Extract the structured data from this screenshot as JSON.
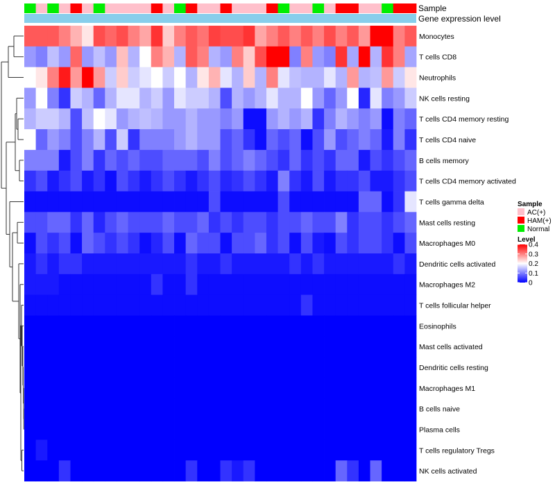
{
  "chart_data": {
    "type": "heatmap",
    "title": "",
    "rows": [
      "Monocytes",
      "T cells CD8",
      "Neutrophils",
      "NK cells resting",
      "T cells CD4 memory resting",
      "T cells CD4 naive",
      "B cells memory",
      "T cells CD4 memory activated",
      "T cells gamma delta",
      "Mast cells resting",
      "Macrophages M0",
      "Dendritic cells activated",
      "Macrophages M2",
      "T cells follicular helper",
      "Eosinophils",
      "Mast cells activated",
      "Dendritic cells resting",
      "Macrophages M1",
      "B cells naive",
      "Plasma cells",
      "T cells regulatory  Tregs",
      "NK cells activated"
    ],
    "samples": [
      "Normal",
      "AC(+)",
      "Normal",
      "AC(+)",
      "HAM(+)",
      "AC(+)",
      "Normal",
      "AC(+)",
      "AC(+)",
      "AC(+)",
      "AC(+)",
      "HAM(+)",
      "AC(+)",
      "Normal",
      "HAM(+)",
      "AC(+)",
      "AC(+)",
      "HAM(+)",
      "AC(+)",
      "AC(+)",
      "AC(+)",
      "HAM(+)",
      "Normal",
      "AC(+)",
      "AC(+)",
      "Normal",
      "AC(+)",
      "HAM(+)",
      "HAM(+)",
      "AC(+)",
      "AC(+)",
      "Normal",
      "HAM(+)",
      "HAM(+)"
    ],
    "values": [
      [
        0.33,
        0.33,
        0.33,
        0.3,
        0.26,
        0.22,
        0.34,
        0.32,
        0.34,
        0.3,
        0.27,
        0.36,
        0.24,
        0.3,
        0.33,
        0.31,
        0.35,
        0.34,
        0.34,
        0.36,
        0.27,
        0.3,
        0.33,
        0.3,
        0.33,
        0.3,
        0.34,
        0.3,
        0.33,
        0.28,
        0.4,
        0.4,
        0.3,
        0.33
      ],
      [
        0.12,
        0.1,
        0.15,
        0.12,
        0.32,
        0.12,
        0.15,
        0.12,
        0.25,
        0.14,
        0.2,
        0.3,
        0.26,
        0.14,
        0.33,
        0.3,
        0.14,
        0.12,
        0.3,
        0.24,
        0.34,
        0.4,
        0.4,
        0.1,
        0.3,
        0.12,
        0.1,
        0.36,
        0.13,
        0.4,
        0.14,
        0.36,
        0.3,
        0.13
      ],
      [
        0.2,
        0.22,
        0.3,
        0.38,
        0.28,
        0.4,
        0.28,
        0.16,
        0.24,
        0.16,
        0.18,
        0.2,
        0.16,
        0.2,
        0.14,
        0.22,
        0.26,
        0.18,
        0.14,
        0.24,
        0.14,
        0.3,
        0.18,
        0.15,
        0.14,
        0.14,
        0.18,
        0.14,
        0.28,
        0.14,
        0.15,
        0.28,
        0.16,
        0.22
      ],
      [
        0.12,
        0.2,
        0.1,
        0.04,
        0.16,
        0.14,
        0.08,
        0.14,
        0.18,
        0.18,
        0.14,
        0.16,
        0.12,
        0.18,
        0.16,
        0.16,
        0.14,
        0.06,
        0.14,
        0.12,
        0.14,
        0.18,
        0.14,
        0.14,
        0.2,
        0.12,
        0.08,
        0.12,
        0.2,
        0.03,
        0.18,
        0.1,
        0.12,
        0.16
      ],
      [
        0.14,
        0.16,
        0.16,
        0.14,
        0.06,
        0.15,
        0.2,
        0.18,
        0.12,
        0.14,
        0.15,
        0.14,
        0.12,
        0.12,
        0.14,
        0.12,
        0.12,
        0.1,
        0.12,
        0.01,
        0.01,
        0.12,
        0.14,
        0.12,
        0.14,
        0.04,
        0.1,
        0.14,
        0.12,
        0.1,
        0.12,
        0.01,
        0.1,
        0.08
      ],
      [
        0.2,
        0.08,
        0.12,
        0.1,
        0.06,
        0.1,
        0.14,
        0.06,
        0.16,
        0.04,
        0.1,
        0.1,
        0.1,
        0.12,
        0.14,
        0.12,
        0.12,
        0.06,
        0.08,
        0.04,
        0.01,
        0.08,
        0.06,
        0.08,
        0.01,
        0.06,
        0.12,
        0.06,
        0.08,
        0.1,
        0.08,
        0.02,
        0.1,
        0.04
      ],
      [
        0.1,
        0.1,
        0.1,
        0.02,
        0.06,
        0.1,
        0.04,
        0.08,
        0.06,
        0.08,
        0.06,
        0.06,
        0.08,
        0.08,
        0.08,
        0.06,
        0.1,
        0.06,
        0.08,
        0.1,
        0.08,
        0.06,
        0.04,
        0.08,
        0.04,
        0.06,
        0.04,
        0.08,
        0.08,
        0.02,
        0.06,
        0.04,
        0.06,
        0.08
      ],
      [
        0.04,
        0.06,
        0.02,
        0.04,
        0.06,
        0.02,
        0.04,
        0.01,
        0.06,
        0.04,
        0.02,
        0.04,
        0.06,
        0.04,
        0.02,
        0.04,
        0.06,
        0.03,
        0.04,
        0.06,
        0.04,
        0.02,
        0.1,
        0.04,
        0.02,
        0.06,
        0.02,
        0.04,
        0.04,
        0.06,
        0.02,
        0.02,
        0.04,
        0.06
      ],
      [
        0.01,
        0.01,
        0.01,
        0.01,
        0.01,
        0.01,
        0.01,
        0.01,
        0.01,
        0.01,
        0.01,
        0.01,
        0.01,
        0.01,
        0.01,
        0.01,
        0.06,
        0.01,
        0.01,
        0.01,
        0.01,
        0.01,
        0.06,
        0.01,
        0.01,
        0.01,
        0.01,
        0.01,
        0.01,
        0.08,
        0.08,
        0.01,
        0.04,
        0.18
      ],
      [
        0.06,
        0.06,
        0.08,
        0.08,
        0.04,
        0.08,
        0.03,
        0.06,
        0.08,
        0.06,
        0.06,
        0.06,
        0.08,
        0.06,
        0.06,
        0.08,
        0.04,
        0.06,
        0.04,
        0.06,
        0.06,
        0.04,
        0.06,
        0.06,
        0.08,
        0.06,
        0.06,
        0.1,
        0.04,
        0.06,
        0.06,
        0.04,
        0.06,
        0.08
      ],
      [
        0.01,
        0.06,
        0.04,
        0.06,
        0.01,
        0.08,
        0.06,
        0.04,
        0.06,
        0.04,
        0.01,
        0.03,
        0.06,
        0.01,
        0.08,
        0.06,
        0.06,
        0.01,
        0.06,
        0.06,
        0.08,
        0.04,
        0.06,
        0.01,
        0.06,
        0.02,
        0.01,
        0.06,
        0.04,
        0.06,
        0.06,
        0.04,
        0.01,
        0.06
      ],
      [
        0.02,
        0.04,
        0.02,
        0.04,
        0.04,
        0.02,
        0.02,
        0.02,
        0.02,
        0.02,
        0.02,
        0.02,
        0.02,
        0.02,
        0.04,
        0.02,
        0.02,
        0.04,
        0.02,
        0.02,
        0.02,
        0.02,
        0.02,
        0.04,
        0.02,
        0.04,
        0.02,
        0.02,
        0.02,
        0.02,
        0.02,
        0.02,
        0.04,
        0.02
      ],
      [
        0.02,
        0.02,
        0.02,
        0.01,
        0.01,
        0.01,
        0.01,
        0.01,
        0.01,
        0.01,
        0.01,
        0.04,
        0.01,
        0.01,
        0.04,
        0.01,
        0.01,
        0.01,
        0.01,
        0.01,
        0.01,
        0.01,
        0.01,
        0.01,
        0.01,
        0.01,
        0.01,
        0.01,
        0.01,
        0.01,
        0.01,
        0.01,
        0.01,
        0.01
      ],
      [
        0.01,
        0.01,
        0.01,
        0.01,
        0.01,
        0.01,
        0.01,
        0.01,
        0.01,
        0.01,
        0.01,
        0.01,
        0.01,
        0.01,
        0.01,
        0.01,
        0.01,
        0.01,
        0.01,
        0.01,
        0.01,
        0.01,
        0.01,
        0.01,
        0.04,
        0.01,
        0.01,
        0.01,
        0.01,
        0.01,
        0.01,
        0.01,
        0.01,
        0.01
      ],
      [
        0.0,
        0.0,
        0.0,
        0.0,
        0.0,
        0.0,
        0.0,
        0.0,
        0.0,
        0.0,
        0.0,
        0.0,
        0.0,
        0.0,
        0.0,
        0.0,
        0.0,
        0.0,
        0.0,
        0.0,
        0.0,
        0.0,
        0.0,
        0.0,
        0.0,
        0.0,
        0.0,
        0.0,
        0.0,
        0.0,
        0.0,
        0.0,
        0.0,
        0.0
      ],
      [
        0.0,
        0.0,
        0.0,
        0.0,
        0.0,
        0.0,
        0.0,
        0.0,
        0.0,
        0.0,
        0.0,
        0.0,
        0.0,
        0.0,
        0.0,
        0.0,
        0.0,
        0.0,
        0.0,
        0.0,
        0.0,
        0.0,
        0.0,
        0.0,
        0.0,
        0.0,
        0.0,
        0.0,
        0.0,
        0.0,
        0.0,
        0.0,
        0.0,
        0.0
      ],
      [
        0.0,
        0.0,
        0.0,
        0.0,
        0.0,
        0.0,
        0.0,
        0.0,
        0.0,
        0.0,
        0.0,
        0.0,
        0.0,
        0.0,
        0.0,
        0.0,
        0.0,
        0.0,
        0.0,
        0.0,
        0.0,
        0.0,
        0.0,
        0.0,
        0.0,
        0.0,
        0.0,
        0.0,
        0.0,
        0.0,
        0.0,
        0.0,
        0.0,
        0.0
      ],
      [
        0.0,
        0.0,
        0.0,
        0.0,
        0.0,
        0.0,
        0.0,
        0.0,
        0.0,
        0.0,
        0.0,
        0.0,
        0.0,
        0.0,
        0.0,
        0.0,
        0.0,
        0.0,
        0.0,
        0.0,
        0.0,
        0.0,
        0.0,
        0.0,
        0.0,
        0.0,
        0.0,
        0.0,
        0.0,
        0.0,
        0.0,
        0.0,
        0.0,
        0.0
      ],
      [
        0.0,
        0.0,
        0.0,
        0.0,
        0.0,
        0.0,
        0.0,
        0.0,
        0.0,
        0.0,
        0.0,
        0.0,
        0.0,
        0.0,
        0.0,
        0.0,
        0.0,
        0.0,
        0.0,
        0.0,
        0.0,
        0.0,
        0.0,
        0.0,
        0.0,
        0.0,
        0.0,
        0.0,
        0.0,
        0.0,
        0.0,
        0.0,
        0.0,
        0.0
      ],
      [
        0.0,
        0.0,
        0.0,
        0.0,
        0.0,
        0.0,
        0.0,
        0.0,
        0.0,
        0.0,
        0.0,
        0.0,
        0.0,
        0.0,
        0.0,
        0.0,
        0.0,
        0.0,
        0.0,
        0.0,
        0.0,
        0.0,
        0.0,
        0.0,
        0.0,
        0.0,
        0.0,
        0.0,
        0.0,
        0.0,
        0.0,
        0.0,
        0.0,
        0.0
      ],
      [
        0.0,
        0.02,
        0.0,
        0.0,
        0.0,
        0.0,
        0.0,
        0.0,
        0.0,
        0.0,
        0.0,
        0.0,
        0.0,
        0.0,
        0.0,
        0.0,
        0.0,
        0.0,
        0.0,
        0.0,
        0.0,
        0.0,
        0.0,
        0.0,
        0.0,
        0.0,
        0.0,
        0.0,
        0.0,
        0.0,
        0.0,
        0.0,
        0.0,
        0.0
      ],
      [
        0.0,
        0.0,
        0.0,
        0.04,
        0.0,
        0.0,
        0.0,
        0.0,
        0.0,
        0.0,
        0.0,
        0.0,
        0.0,
        0.0,
        0.04,
        0.0,
        0.0,
        0.04,
        0.02,
        0.04,
        0.0,
        0.0,
        0.0,
        0.0,
        0.0,
        0.0,
        0.0,
        0.08,
        0.04,
        0.0,
        0.08,
        0.0,
        0.0,
        0.0
      ]
    ],
    "annotation_rows": [
      "Sample",
      "Gene expression level"
    ],
    "gene_expression_color": "#87ceeb",
    "legend": {
      "sample": {
        "title": "Sample",
        "entries": [
          {
            "label": "AC(+)",
            "color": "#ffc0cb"
          },
          {
            "label": "HAM(+)",
            "color": "#ff0000"
          },
          {
            "label": "Normal",
            "color": "#00ee00"
          }
        ]
      },
      "level": {
        "title": "Level",
        "ticks": [
          "0.4",
          "0.3",
          "0.2",
          "0.1",
          "0"
        ],
        "tick_values": [
          0.4,
          0.3,
          0.2,
          0.1,
          0
        ],
        "range": [
          0,
          0.4
        ],
        "colors": [
          "#0000ff",
          "#ffffff",
          "#ff0000"
        ]
      }
    },
    "dendrogram": "rows",
    "grid": false
  }
}
